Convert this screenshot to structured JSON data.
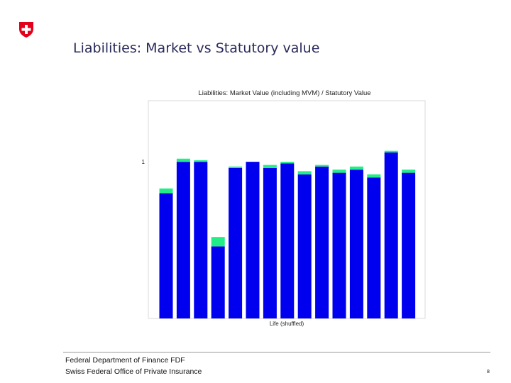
{
  "slide": {
    "title": "Liabilities: Market vs Statutory value",
    "footer_line1": "Federal Department of Finance FDF",
    "footer_line2": "Swiss Federal Office of Private Insurance",
    "page_number": "8"
  },
  "colors": {
    "statutory_bar": "#0000ee",
    "mvm_cap": "#22ee88",
    "logo_red": "#e2001a",
    "title_text": "#2a2a5a"
  },
  "chart_data": {
    "type": "bar",
    "title": "Liabilities: Market Value (including MVM) / Statutory Value",
    "xlabel": "Life (shuffled)",
    "ylabel": "",
    "yticks": [
      1
    ],
    "ytick_labels": [
      "1"
    ],
    "ylim": [
      0.0,
      1.39
    ],
    "grid": false,
    "stacked": true,
    "categories": [
      "",
      "",
      "",
      "",
      "",
      "",
      "",
      "",
      "",
      "",
      "",
      "",
      "",
      "",
      ""
    ],
    "series": [
      {
        "values": [
          0.8,
          1.0,
          1.0,
          0.46,
          0.96,
          1.0,
          0.96,
          0.99,
          0.92,
          0.97,
          0.93,
          0.95,
          0.9,
          1.06,
          0.93
        ]
      },
      {
        "values": [
          0.03,
          0.02,
          0.01,
          0.06,
          0.01,
          0.0,
          0.02,
          0.01,
          0.02,
          0.01,
          0.02,
          0.02,
          0.02,
          0.01,
          0.02
        ]
      }
    ]
  }
}
